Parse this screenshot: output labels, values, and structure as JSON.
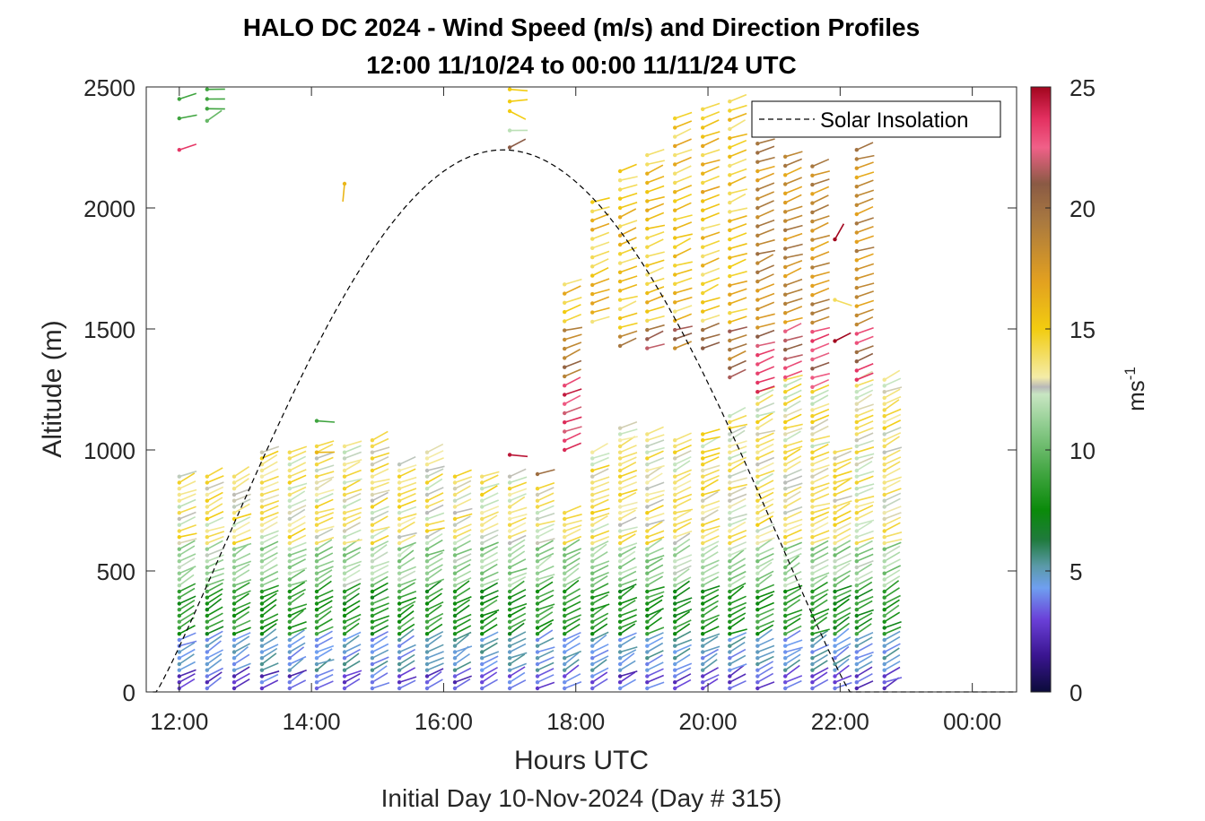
{
  "title_line1": "HALO DC 2024 - Wind Speed (m/s) and Direction Profiles",
  "title_line2": "12:00 11/10/24 to 00:00 11/11/24  UTC",
  "footer": "Initial Day 10-Nov-2024 (Day # 315)",
  "chart_data": {
    "type": "wind-barb-profile",
    "x_axis": {
      "label": "Hours UTC",
      "range_hours": [
        11.5,
        24.67
      ],
      "ticks": [
        {
          "hour": 12,
          "label": "12:00"
        },
        {
          "hour": 14,
          "label": "14:00"
        },
        {
          "hour": 16,
          "label": "16:00"
        },
        {
          "hour": 18,
          "label": "18:00"
        },
        {
          "hour": 20,
          "label": "20:00"
        },
        {
          "hour": 22,
          "label": "22:00"
        },
        {
          "hour": 24,
          "label": "00:00"
        }
      ]
    },
    "y_axis": {
      "label": "Altitude (m)",
      "range": [
        0,
        2500
      ],
      "ticks": [
        0,
        500,
        1000,
        1500,
        2000,
        2500
      ]
    },
    "colorbar": {
      "label": "ms",
      "label_superscript": "-1",
      "range": [
        0,
        25
      ],
      "ticks": [
        0,
        5,
        10,
        15,
        20,
        25
      ],
      "stops": [
        {
          "v": 0,
          "c": "#0b0b3a"
        },
        {
          "v": 1.5,
          "c": "#3a1590"
        },
        {
          "v": 3,
          "c": "#6a40d8"
        },
        {
          "v": 4.3,
          "c": "#6f9ff0"
        },
        {
          "v": 5.2,
          "c": "#5a9aa8"
        },
        {
          "v": 6.3,
          "c": "#1f7a3c"
        },
        {
          "v": 7.5,
          "c": "#0a8a0a"
        },
        {
          "v": 9,
          "c": "#3fa43f"
        },
        {
          "v": 11,
          "c": "#8fcc8f"
        },
        {
          "v": 12.3,
          "c": "#c8e6c2"
        },
        {
          "v": 12.6,
          "c": "#b8b8b8"
        },
        {
          "v": 13,
          "c": "#f4eca8"
        },
        {
          "v": 15,
          "c": "#f2cc10"
        },
        {
          "v": 17,
          "c": "#e2a020"
        },
        {
          "v": 19.5,
          "c": "#a87840"
        },
        {
          "v": 21,
          "c": "#8a5a44"
        },
        {
          "v": 22.5,
          "c": "#f06088"
        },
        {
          "v": 23.7,
          "c": "#e33060"
        },
        {
          "v": 25,
          "c": "#a2051e"
        }
      ]
    },
    "legend": {
      "label": "Solar Insolation",
      "position": "top-right",
      "style": "dashed"
    },
    "solar_insolation_curve": {
      "sunrise_hour": 11.65,
      "sunset_hour": 22.15,
      "peak_hour": 16.9,
      "peak_altitude_m": 2240
    },
    "profiles": [
      {
        "t": 12.0,
        "top": 900,
        "upper": [
          [
            2450,
            9,
            250
          ],
          [
            2370,
            9,
            255
          ],
          [
            2240,
            23.5,
            255
          ]
        ]
      },
      {
        "t": 12.42,
        "top": 900,
        "upper": [
          [
            2490,
            9,
            270
          ],
          [
            2450,
            9,
            265
          ],
          [
            2410,
            9,
            270
          ],
          [
            2360,
            10,
            240
          ]
        ]
      },
      {
        "t": 12.83,
        "top": 900,
        "upper": []
      },
      {
        "t": 13.25,
        "top": 1000,
        "upper": []
      },
      {
        "t": 13.67,
        "top": 1000,
        "upper": []
      },
      {
        "t": 14.08,
        "top": 1020,
        "upper": [
          [
            1120,
            9,
            270
          ],
          [
            990,
            16,
            270
          ]
        ]
      },
      {
        "t": 14.5,
        "top": 1020,
        "upper": [
          [
            2100,
            16,
            360
          ]
        ]
      },
      {
        "t": 14.92,
        "top": 1040,
        "upper": []
      },
      {
        "t": 15.33,
        "top": 960,
        "upper": []
      },
      {
        "t": 15.75,
        "top": 1000,
        "upper": []
      },
      {
        "t": 16.17,
        "top": 910,
        "upper": []
      },
      {
        "t": 16.58,
        "top": 900,
        "upper": []
      },
      {
        "t": 17.0,
        "top": 900,
        "upper": [
          [
            2490,
            15,
            270
          ],
          [
            2440,
            15,
            270
          ],
          [
            2400,
            15,
            300
          ],
          [
            2320,
            12,
            270
          ],
          [
            2250,
            21,
            240
          ],
          [
            980,
            24.5,
            270
          ]
        ]
      },
      {
        "t": 17.42,
        "top": 850,
        "upper": [
          [
            900,
            20,
            250
          ]
        ]
      },
      {
        "t": 17.83,
        "top": 760,
        "high": [
          1000,
          1700
        ]
      },
      {
        "t": 18.25,
        "top": 1000,
        "high": [
          1530,
          2040
        ]
      },
      {
        "t": 18.67,
        "top": 1100,
        "high": [
          1430,
          2170
        ]
      },
      {
        "t": 19.08,
        "top": 1080,
        "high": [
          1420,
          2250
        ]
      },
      {
        "t": 19.5,
        "top": 1060,
        "high": [
          1420,
          2370
        ]
      },
      {
        "t": 19.92,
        "top": 1080,
        "high": [
          1420,
          2440
        ]
      },
      {
        "t": 20.33,
        "top": 1140,
        "high": [
          1300,
          2450
        ]
      },
      {
        "t": 20.75,
        "top": 1240,
        "high": [
          1240,
          2280
        ]
      },
      {
        "t": 21.17,
        "top": 1300,
        "high": [
          1300,
          2220
        ]
      },
      {
        "t": 21.58,
        "top": 1260,
        "high": [
          1260,
          2200
        ]
      },
      {
        "t": 21.92,
        "top": 1000,
        "upper": [
          [
            1870,
            25,
            210
          ],
          [
            1620,
            14,
            290
          ],
          [
            1450,
            25,
            240
          ]
        ]
      },
      {
        "t": 22.25,
        "top": 1290,
        "high": [
          1290,
          2240
        ]
      },
      {
        "t": 22.67,
        "top": 1310,
        "upper": []
      }
    ]
  }
}
